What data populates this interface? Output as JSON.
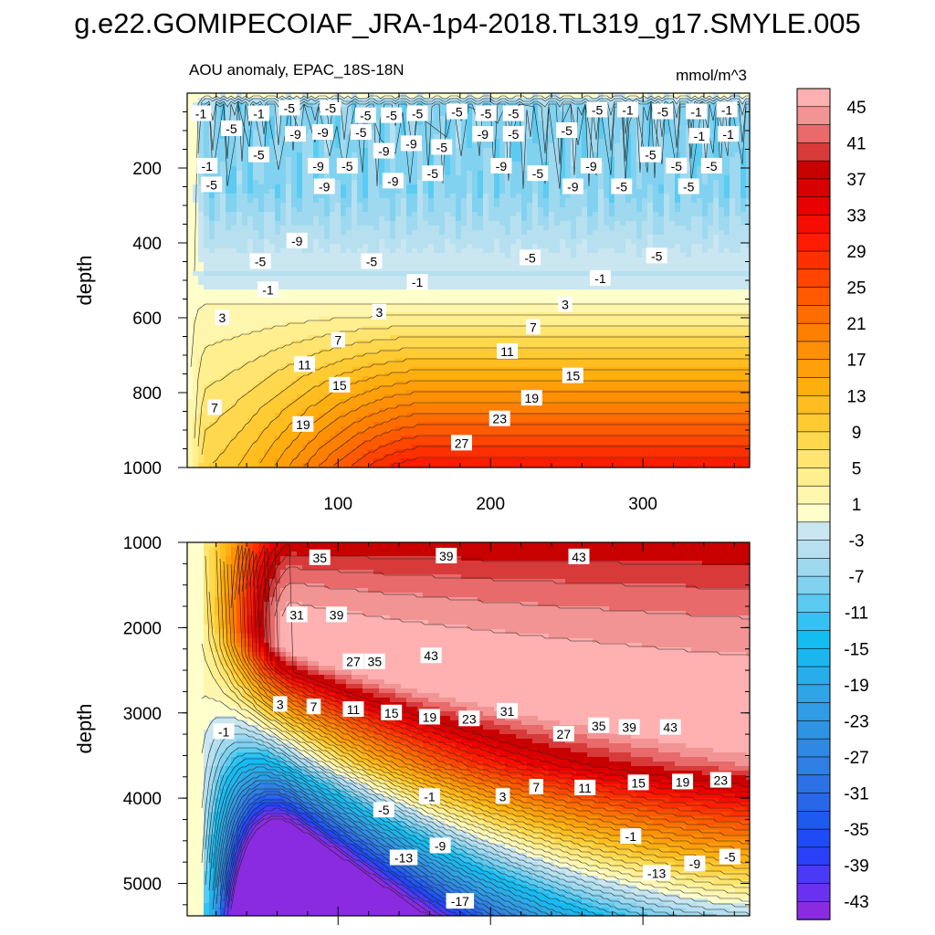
{
  "figure": {
    "title": "g.e22.GOMIPECOIAF_JRA-1p4-2018.TL319_g17.SMYLE.005",
    "panel_title": "AOU anomaly, EPAC_18S-18N",
    "units": "mmol/m^3"
  },
  "colors": {
    "background": "#ffffff",
    "frame": "#000000",
    "contour_line": "#222222",
    "palette_levels": [
      {
        "min": -99,
        "max": -43,
        "color": "#8a2be2"
      },
      {
        "min": -43,
        "max": -41,
        "color": "#6a32f0"
      },
      {
        "min": -41,
        "max": -39,
        "color": "#4a3af5"
      },
      {
        "min": -39,
        "max": -37,
        "color": "#2a40f8"
      },
      {
        "min": -37,
        "max": -35,
        "color": "#1e4bf6"
      },
      {
        "min": -35,
        "max": -33,
        "color": "#1e5af0"
      },
      {
        "min": -33,
        "max": -31,
        "color": "#2866ea"
      },
      {
        "min": -31,
        "max": -29,
        "color": "#2c72e6"
      },
      {
        "min": -29,
        "max": -27,
        "color": "#2f7ee3"
      },
      {
        "min": -27,
        "max": -25,
        "color": "#2f89e2"
      },
      {
        "min": -25,
        "max": -23,
        "color": "#2f93e3"
      },
      {
        "min": -23,
        "max": -21,
        "color": "#2f9ce5"
      },
      {
        "min": -21,
        "max": -19,
        "color": "#2ea5e7"
      },
      {
        "min": -19,
        "max": -17,
        "color": "#27aeea"
      },
      {
        "min": -17,
        "max": -15,
        "color": "#1cb6ee"
      },
      {
        "min": -15,
        "max": -13,
        "color": "#13bdf2"
      },
      {
        "min": -13,
        "max": -11,
        "color": "#33c3f2"
      },
      {
        "min": -11,
        "max": -9,
        "color": "#5ccbf2"
      },
      {
        "min": -9,
        "max": -7,
        "color": "#80d2f0"
      },
      {
        "min": -7,
        "max": -5,
        "color": "#9fd9ef"
      },
      {
        "min": -5,
        "max": -3,
        "color": "#b6e0f0"
      },
      {
        "min": -3,
        "max": -1,
        "color": "#c9e6f1"
      },
      {
        "min": -1,
        "max": 1,
        "color": "#ffffcc"
      },
      {
        "min": 1,
        "max": 3,
        "color": "#fff6ad"
      },
      {
        "min": 3,
        "max": 5,
        "color": "#ffef8f"
      },
      {
        "min": 5,
        "max": 7,
        "color": "#ffe570"
      },
      {
        "min": 7,
        "max": 9,
        "color": "#ffd84d"
      },
      {
        "min": 9,
        "max": 11,
        "color": "#ffcb33"
      },
      {
        "min": 11,
        "max": 13,
        "color": "#ffbd1f"
      },
      {
        "min": 13,
        "max": 15,
        "color": "#ffae10"
      },
      {
        "min": 15,
        "max": 17,
        "color": "#ff9f0a"
      },
      {
        "min": 17,
        "max": 19,
        "color": "#ff8f05"
      },
      {
        "min": 19,
        "max": 21,
        "color": "#ff7f00"
      },
      {
        "min": 21,
        "max": 23,
        "color": "#ff6d00"
      },
      {
        "min": 23,
        "max": 25,
        "color": "#ff5a00"
      },
      {
        "min": 25,
        "max": 27,
        "color": "#ff4500"
      },
      {
        "min": 27,
        "max": 29,
        "color": "#ff3000"
      },
      {
        "min": 29,
        "max": 31,
        "color": "#ff1c00"
      },
      {
        "min": 31,
        "max": 33,
        "color": "#f60c00"
      },
      {
        "min": 33,
        "max": 35,
        "color": "#e80000"
      },
      {
        "min": 35,
        "max": 37,
        "color": "#d80000"
      },
      {
        "min": 37,
        "max": 39,
        "color": "#c80000"
      },
      {
        "min": 39,
        "max": 41,
        "color": "#d83a3a"
      },
      {
        "min": 41,
        "max": 43,
        "color": "#e86a6a"
      },
      {
        "min": 43,
        "max": 45,
        "color": "#f29494"
      },
      {
        "min": 45,
        "max": 999,
        "color": "#ffb0b0"
      }
    ]
  },
  "chart_data": [
    {
      "type": "heatmap",
      "panel": "upper",
      "title": "AOU anomaly, EPAC_18S-18N",
      "units": "mmol/m^3",
      "xlabel": "",
      "ylabel": "depth",
      "xlim": [
        1,
        370
      ],
      "ylim": [
        1000,
        0
      ],
      "xticks": [
        100,
        200,
        300
      ],
      "xtick_labels": [
        "100",
        "200",
        "300"
      ],
      "yticks": [
        200,
        400,
        600,
        800,
        1000
      ],
      "ytick_labels": [
        "200",
        "400",
        "600",
        "800",
        "1000"
      ],
      "contour_labels": [
        {
          "x": 10,
          "y": 55,
          "v": "-1"
        },
        {
          "x": 48,
          "y": 55,
          "v": "-1"
        },
        {
          "x": 68,
          "y": 40,
          "v": "-5"
        },
        {
          "x": 95,
          "y": 40,
          "v": "-5"
        },
        {
          "x": 118,
          "y": 60,
          "v": "-5"
        },
        {
          "x": 135,
          "y": 60,
          "v": "-5"
        },
        {
          "x": 152,
          "y": 55,
          "v": "-5"
        },
        {
          "x": 178,
          "y": 50,
          "v": "-5"
        },
        {
          "x": 197,
          "y": 55,
          "v": "-5"
        },
        {
          "x": 215,
          "y": 55,
          "v": "-5"
        },
        {
          "x": 270,
          "y": 45,
          "v": "-5"
        },
        {
          "x": 290,
          "y": 45,
          "v": "-1"
        },
        {
          "x": 313,
          "y": 50,
          "v": "-5"
        },
        {
          "x": 335,
          "y": 50,
          "v": "-1"
        },
        {
          "x": 355,
          "y": 45,
          "v": "-1"
        },
        {
          "x": 30,
          "y": 95,
          "v": "-5"
        },
        {
          "x": 72,
          "y": 110,
          "v": "-9"
        },
        {
          "x": 90,
          "y": 105,
          "v": "-9"
        },
        {
          "x": 115,
          "y": 105,
          "v": "-5"
        },
        {
          "x": 195,
          "y": 110,
          "v": "-9"
        },
        {
          "x": 215,
          "y": 110,
          "v": "-5"
        },
        {
          "x": 250,
          "y": 100,
          "v": "-5"
        },
        {
          "x": 337,
          "y": 115,
          "v": "-1"
        },
        {
          "x": 356,
          "y": 110,
          "v": "-1"
        },
        {
          "x": 48,
          "y": 165,
          "v": "-5"
        },
        {
          "x": 130,
          "y": 155,
          "v": "-9"
        },
        {
          "x": 148,
          "y": 135,
          "v": "-9"
        },
        {
          "x": 168,
          "y": 145,
          "v": "-5"
        },
        {
          "x": 305,
          "y": 165,
          "v": "-5"
        },
        {
          "x": 14,
          "y": 195,
          "v": "-1"
        },
        {
          "x": 87,
          "y": 195,
          "v": "-9"
        },
        {
          "x": 106,
          "y": 195,
          "v": "-5"
        },
        {
          "x": 207,
          "y": 195,
          "v": "-9"
        },
        {
          "x": 266,
          "y": 195,
          "v": "-9"
        },
        {
          "x": 322,
          "y": 195,
          "v": "-5"
        },
        {
          "x": 345,
          "y": 195,
          "v": "-5"
        },
        {
          "x": 162,
          "y": 215,
          "v": "-5"
        },
        {
          "x": 231,
          "y": 215,
          "v": "-5"
        },
        {
          "x": 17,
          "y": 245,
          "v": "-5"
        },
        {
          "x": 91,
          "y": 250,
          "v": "-9"
        },
        {
          "x": 136,
          "y": 235,
          "v": "-9"
        },
        {
          "x": 254,
          "y": 250,
          "v": "-9"
        },
        {
          "x": 286,
          "y": 250,
          "v": "-5"
        },
        {
          "x": 330,
          "y": 250,
          "v": "-5"
        },
        {
          "x": 73,
          "y": 395,
          "v": "-9"
        },
        {
          "x": 49,
          "y": 450,
          "v": "-5"
        },
        {
          "x": 122,
          "y": 450,
          "v": "-5"
        },
        {
          "x": 226,
          "y": 440,
          "v": "-5"
        },
        {
          "x": 309,
          "y": 435,
          "v": "-5"
        },
        {
          "x": 54,
          "y": 525,
          "v": "-1"
        },
        {
          "x": 152,
          "y": 505,
          "v": "-1"
        },
        {
          "x": 272,
          "y": 495,
          "v": "-1"
        },
        {
          "x": 24,
          "y": 600,
          "v": "3"
        },
        {
          "x": 127,
          "y": 585,
          "v": "3"
        },
        {
          "x": 249,
          "y": 565,
          "v": "3"
        },
        {
          "x": 100,
          "y": 660,
          "v": "7"
        },
        {
          "x": 228,
          "y": 625,
          "v": "7"
        },
        {
          "x": 78,
          "y": 725,
          "v": "11"
        },
        {
          "x": 211,
          "y": 690,
          "v": "11"
        },
        {
          "x": 101,
          "y": 780,
          "v": "15"
        },
        {
          "x": 254,
          "y": 755,
          "v": "15"
        },
        {
          "x": 19,
          "y": 840,
          "v": "7"
        },
        {
          "x": 227,
          "y": 815,
          "v": "19"
        },
        {
          "x": 77,
          "y": 885,
          "v": "19"
        },
        {
          "x": 206,
          "y": 870,
          "v": "23"
        },
        {
          "x": 181,
          "y": 935,
          "v": "27"
        }
      ]
    },
    {
      "type": "heatmap",
      "panel": "lower",
      "title": "",
      "units": "mmol/m^3",
      "xlabel": "",
      "ylabel": "depth",
      "xlim": [
        1,
        370
      ],
      "ylim": [
        5380,
        1000
      ],
      "xticks": [
        100,
        200,
        300
      ],
      "xtick_labels": [
        "",
        "",
        ""
      ],
      "yticks": [
        1000,
        2000,
        3000,
        4000,
        5000
      ],
      "ytick_labels": [
        "1000",
        "2000",
        "3000",
        "4000",
        "5000"
      ],
      "contour_labels": [
        {
          "x": 88,
          "y": 1180,
          "v": "35"
        },
        {
          "x": 171,
          "y": 1160,
          "v": "39"
        },
        {
          "x": 258,
          "y": 1170,
          "v": "43"
        },
        {
          "x": 73,
          "y": 1850,
          "v": "31"
        },
        {
          "x": 99,
          "y": 1850,
          "v": "39"
        },
        {
          "x": 110,
          "y": 2400,
          "v": "27"
        },
        {
          "x": 124,
          "y": 2400,
          "v": "35"
        },
        {
          "x": 161,
          "y": 2330,
          "v": "43"
        },
        {
          "x": 62,
          "y": 2900,
          "v": "3"
        },
        {
          "x": 84,
          "y": 2930,
          "v": "7"
        },
        {
          "x": 110,
          "y": 2960,
          "v": "11"
        },
        {
          "x": 135,
          "y": 3000,
          "v": "15"
        },
        {
          "x": 160,
          "y": 3050,
          "v": "19"
        },
        {
          "x": 186,
          "y": 3070,
          "v": "23"
        },
        {
          "x": 211,
          "y": 2980,
          "v": "31"
        },
        {
          "x": 248,
          "y": 3250,
          "v": "27"
        },
        {
          "x": 271,
          "y": 3150,
          "v": "35"
        },
        {
          "x": 291,
          "y": 3170,
          "v": "39"
        },
        {
          "x": 318,
          "y": 3170,
          "v": "43"
        },
        {
          "x": 25,
          "y": 3220,
          "v": "-1"
        },
        {
          "x": 297,
          "y": 3820,
          "v": "15"
        },
        {
          "x": 262,
          "y": 3880,
          "v": "11"
        },
        {
          "x": 326,
          "y": 3810,
          "v": "19"
        },
        {
          "x": 351,
          "y": 3790,
          "v": "23"
        },
        {
          "x": 230,
          "y": 3870,
          "v": "7"
        },
        {
          "x": 208,
          "y": 3980,
          "v": "3"
        },
        {
          "x": 160,
          "y": 3980,
          "v": "-1"
        },
        {
          "x": 130,
          "y": 4140,
          "v": "-5"
        },
        {
          "x": 292,
          "y": 4450,
          "v": "-1"
        },
        {
          "x": 167,
          "y": 4560,
          "v": "-9"
        },
        {
          "x": 143,
          "y": 4700,
          "v": "-13"
        },
        {
          "x": 357,
          "y": 4690,
          "v": "-5"
        },
        {
          "x": 334,
          "y": 4770,
          "v": "-9"
        },
        {
          "x": 309,
          "y": 4880,
          "v": "-13"
        },
        {
          "x": 180,
          "y": 5210,
          "v": "-17"
        }
      ]
    },
    {
      "type": "colorbar",
      "tick_labels": [
        "45",
        "41",
        "37",
        "33",
        "29",
        "25",
        "21",
        "17",
        "13",
        "9",
        "5",
        "1",
        "-3",
        "-7",
        "-11",
        "-15",
        "-19",
        "-23",
        "-27",
        "-31",
        "-35",
        "-39",
        "-43"
      ]
    }
  ]
}
